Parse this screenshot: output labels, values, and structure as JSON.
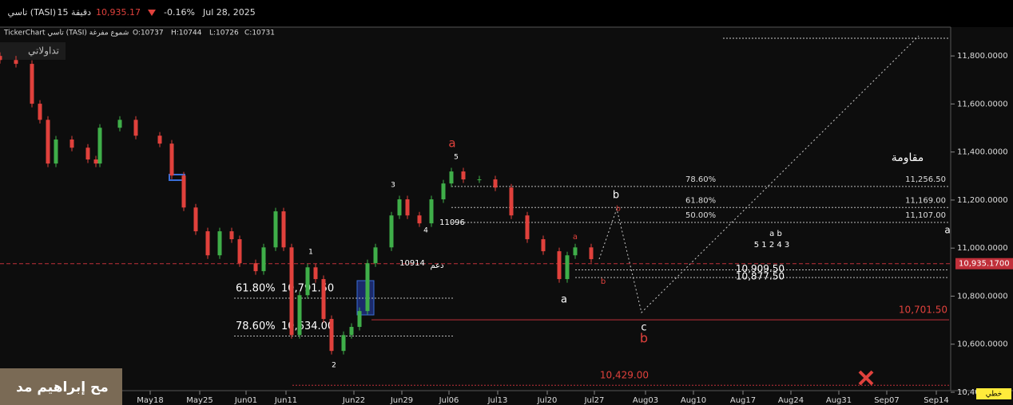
{
  "chart_data": {
    "type": "candlestick",
    "header": {
      "symbol": "تاسي (TASI)",
      "interval": "15 دقيقة",
      "price": "10,935.17",
      "change": "-0.16%",
      "date": "Jul 28, 2025"
    },
    "subheader": {
      "source": "TickerChart تاسي (TASI) شموع مفرغة",
      "open": "O:10737",
      "high": "H:10744",
      "low": "L:10726",
      "close": "C:10731"
    },
    "watermark": "تداولاتي",
    "author": "مح إبراهيم مد",
    "style_button": "خطي",
    "ylim": [
      10390,
      11910
    ],
    "yticks": [
      {
        "value": 10400,
        "label": "10,400.0000"
      },
      {
        "value": 10600,
        "label": "10,600.0000"
      },
      {
        "value": 10800,
        "label": "10,800.0000"
      },
      {
        "value": 11000,
        "label": "11,000.0000"
      },
      {
        "value": 11200,
        "label": "11,200.0000"
      },
      {
        "value": 11400,
        "label": "11,400.0000"
      },
      {
        "value": 11600,
        "label": "11,600.0000"
      },
      {
        "value": 11800,
        "label": "11,800.0000"
      }
    ],
    "xlim": [
      0,
      1190
    ],
    "xticks": [
      {
        "value": 188,
        "label": "May18"
      },
      {
        "value": 250,
        "label": "May25"
      },
      {
        "value": 308,
        "label": "Jun01"
      },
      {
        "value": 358,
        "label": "Jun11"
      },
      {
        "value": 443,
        "label": "Jun22"
      },
      {
        "value": 503,
        "label": "Jun29"
      },
      {
        "value": 562,
        "label": "Jul06"
      },
      {
        "value": 623,
        "label": "Jul13"
      },
      {
        "value": 685,
        "label": "Jul20"
      },
      {
        "value": 744,
        "label": "Jul27"
      },
      {
        "value": 808,
        "label": "Aug03"
      },
      {
        "value": 868,
        "label": "Aug10"
      },
      {
        "value": 930,
        "label": "Aug17"
      },
      {
        "value": 990,
        "label": "Aug24"
      },
      {
        "value": 1050,
        "label": "Aug31"
      },
      {
        "value": 1110,
        "label": "Sep07"
      },
      {
        "value": 1172,
        "label": "Sep14"
      }
    ],
    "candles": {
      "x": [
        0,
        20,
        40,
        50,
        60,
        70,
        90,
        110,
        120,
        125,
        150,
        170,
        200,
        215,
        230,
        245,
        260,
        275,
        290,
        300,
        320,
        330,
        345,
        355,
        365,
        375,
        385,
        395,
        405,
        415,
        430,
        440,
        450,
        460,
        470,
        490,
        500,
        510,
        525,
        540,
        555,
        565,
        580,
        600,
        620,
        640,
        660,
        680,
        700,
        710,
        720,
        740
      ],
      "open": [
        11800,
        11783,
        11767,
        11601,
        11534,
        11352,
        11452,
        11418,
        11369,
        11352,
        11501,
        11534,
        11468,
        11435,
        11302,
        11169,
        11070,
        10970,
        11070,
        11037,
        10937,
        10904,
        11003,
        11153,
        11003,
        10638,
        10804,
        10920,
        10871,
        10705,
        10572,
        10638,
        10672,
        10738,
        10937,
        11003,
        11136,
        11203,
        11136,
        11103,
        11203,
        11269,
        11319,
        11286,
        11286,
        11252,
        11136,
        11037,
        10987,
        10871,
        10970,
        11003
      ],
      "high": [
        11815,
        11800,
        11782,
        11616,
        11549,
        11467,
        11467,
        11433,
        11384,
        11516,
        11549,
        11549,
        11483,
        11450,
        11317,
        11184,
        11085,
        11085,
        11085,
        11052,
        10952,
        11018,
        11168,
        11168,
        11018,
        10819,
        10935,
        10935,
        10886,
        10720,
        10653,
        10687,
        10753,
        10952,
        11018,
        11151,
        11218,
        11218,
        11151,
        11218,
        11284,
        11334,
        11334,
        11301,
        11301,
        11267,
        11151,
        11052,
        11002,
        10985,
        11018,
        11018
      ],
      "low": [
        11768,
        11752,
        11586,
        11519,
        11337,
        11337,
        11403,
        11354,
        11337,
        11337,
        11486,
        11453,
        11420,
        11287,
        11154,
        11055,
        10955,
        10955,
        11022,
        10922,
        10889,
        10889,
        10988,
        10988,
        10623,
        10623,
        10789,
        10856,
        10690,
        10557,
        10557,
        10623,
        10657,
        10723,
        10922,
        10988,
        11121,
        11121,
        11088,
        11088,
        11188,
        11254,
        11271,
        11271,
        11237,
        11121,
        11022,
        10972,
        10856,
        10856,
        10955,
        10939
      ],
      "close": [
        11783,
        11767,
        11601,
        11534,
        11352,
        11452,
        11418,
        11369,
        11352,
        11501,
        11534,
        11468,
        11435,
        11302,
        11169,
        11070,
        10970,
        11070,
        11037,
        10937,
        10904,
        11003,
        11153,
        11003,
        10638,
        10804,
        10920,
        10871,
        10705,
        10572,
        10638,
        10672,
        10738,
        10937,
        11003,
        11136,
        11203,
        11136,
        11103,
        11203,
        11269,
        11319,
        11286,
        11286,
        11252,
        11136,
        11037,
        10987,
        10871,
        10970,
        11003,
        10954
      ]
    },
    "up_color": "#3fae49",
    "down_color": "#e0413c",
    "last_price": {
      "value": 10935.17,
      "label": "10,935.1700"
    },
    "fib_right": [
      {
        "label": "78.60%",
        "value": 11256.5,
        "value_label": "11,256.50"
      },
      {
        "label": "61.80%",
        "value": 11169,
        "value_label": "11,169.00"
      },
      {
        "label": "50.00%",
        "value": 11107,
        "value_label": "11,107.00"
      }
    ],
    "fib_left": [
      {
        "label": "61.80%",
        "value": 10791.5,
        "value_label": "10,791.50"
      },
      {
        "label": "78.60%",
        "value": 10634,
        "value_label": "10,634.00"
      }
    ],
    "support_levels": [
      {
        "value": 10701.5,
        "value_label": "10,701.50"
      },
      {
        "value": 10429,
        "value_label": "10,429.00"
      }
    ],
    "mini_levels": [
      {
        "value": 10909.5,
        "value_label": "10,909.50"
      },
      {
        "value": 10877.5,
        "value_label": "10,877.50"
      }
    ],
    "annotations": [
      "a",
      "5",
      "3",
      "4",
      "1",
      "2",
      "11096",
      "10914",
      "دعم",
      "a",
      "b",
      "a",
      "b",
      "b",
      "c",
      "b",
      "a",
      "5 1 2 4 3",
      "a b",
      "مقاومة"
    ]
  }
}
